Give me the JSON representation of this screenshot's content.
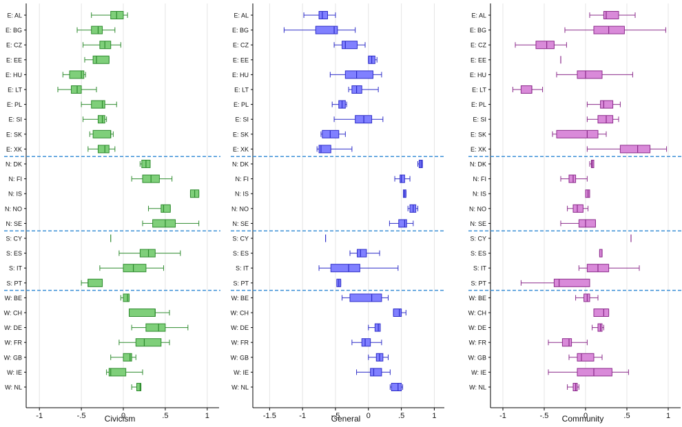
{
  "chart_data": [
    {
      "type": "boxplot",
      "xlabel": "Civicism",
      "xlim": [
        -1.1,
        1.1
      ],
      "xticks": [
        "-1",
        "-.5",
        "0",
        ".5",
        "1"
      ],
      "xtick_values": [
        -1,
        -0.5,
        0,
        0.5,
        1
      ],
      "color": "#5cb85c",
      "fill": "#7fcf7a",
      "stroke": "#2e8b2e",
      "boxes": [
        {
          "label": "E: AL",
          "min": -0.38,
          "q1": -0.15,
          "median": -0.08,
          "q3": 0.0,
          "max": 0.05
        },
        {
          "label": "E: BG",
          "min": -0.55,
          "q1": -0.38,
          "median": -0.3,
          "q3": -0.25,
          "max": -0.1
        },
        {
          "label": "E: CZ",
          "min": -0.48,
          "q1": -0.28,
          "median": -0.22,
          "q3": -0.15,
          "max": -0.03
        },
        {
          "label": "E: EE",
          "min": -0.46,
          "q1": -0.36,
          "median": -0.32,
          "q3": -0.17,
          "max": -0.17
        },
        {
          "label": "E: HU",
          "min": -0.72,
          "q1": -0.64,
          "median": -0.5,
          "q3": -0.47,
          "max": -0.45
        },
        {
          "label": "E: LT",
          "min": -0.78,
          "q1": -0.62,
          "median": -0.55,
          "q3": -0.5,
          "max": -0.32
        },
        {
          "label": "E: PL",
          "min": -0.5,
          "q1": -0.38,
          "median": -0.25,
          "q3": -0.22,
          "max": -0.08
        },
        {
          "label": "E: SI",
          "min": -0.48,
          "q1": -0.3,
          "median": -0.25,
          "q3": -0.22,
          "max": -0.2
        },
        {
          "label": "E: SK",
          "min": -0.4,
          "q1": -0.36,
          "median": -0.15,
          "q3": -0.15,
          "max": -0.12
        },
        {
          "label": "E: XK",
          "min": -0.42,
          "q1": -0.3,
          "median": -0.22,
          "q3": -0.17,
          "max": -0.1
        },
        {
          "label": "N: DK",
          "min": 0.2,
          "q1": 0.22,
          "median": 0.27,
          "q3": 0.32,
          "max": 0.32
        },
        {
          "label": "N: FI",
          "min": 0.1,
          "q1": 0.23,
          "median": 0.33,
          "q3": 0.43,
          "max": 0.58
        },
        {
          "label": "N: IS",
          "min": 0.8,
          "q1": 0.8,
          "median": 0.85,
          "q3": 0.9,
          "max": 0.9
        },
        {
          "label": "N: NO",
          "min": 0.3,
          "q1": 0.45,
          "median": 0.48,
          "q3": 0.56,
          "max": 0.56
        },
        {
          "label": "N: SE",
          "min": 0.23,
          "q1": 0.35,
          "median": 0.5,
          "q3": 0.62,
          "max": 0.9
        },
        {
          "label": "S: CY",
          "min": -0.15,
          "q1": -0.15,
          "median": -0.15,
          "q3": -0.15,
          "max": -0.15
        },
        {
          "label": "S: ES",
          "min": -0.05,
          "q1": 0.2,
          "median": 0.3,
          "q3": 0.38,
          "max": 0.68
        },
        {
          "label": "S: IT",
          "min": -0.28,
          "q1": 0.0,
          "median": 0.12,
          "q3": 0.27,
          "max": 0.48
        },
        {
          "label": "S: PT",
          "min": -0.5,
          "q1": -0.42,
          "median": -0.42,
          "q3": -0.25,
          "max": -0.25
        },
        {
          "label": "W: BE",
          "min": -0.03,
          "q1": 0.0,
          "median": 0.05,
          "q3": 0.07,
          "max": 0.07
        },
        {
          "label": "W: CH",
          "min": 0.07,
          "q1": 0.07,
          "median": 0.38,
          "q3": 0.38,
          "max": 0.55
        },
        {
          "label": "W: DE",
          "min": 0.1,
          "q1": 0.27,
          "median": 0.42,
          "q3": 0.5,
          "max": 0.77
        },
        {
          "label": "W: FR",
          "min": -0.05,
          "q1": 0.15,
          "median": 0.25,
          "q3": 0.45,
          "max": 0.55
        },
        {
          "label": "W: GB",
          "min": -0.15,
          "q1": 0.0,
          "median": 0.08,
          "q3": 0.1,
          "max": 0.15
        },
        {
          "label": "W: IE",
          "min": -0.2,
          "q1": -0.17,
          "median": -0.15,
          "q3": 0.03,
          "max": 0.23
        },
        {
          "label": "W: NL",
          "min": 0.1,
          "q1": 0.16,
          "median": 0.2,
          "q3": 0.21,
          "max": 0.21
        }
      ]
    },
    {
      "type": "boxplot",
      "xlabel": "General",
      "xlim": [
        -1.65,
        1.1
      ],
      "xticks": [
        "-1.5",
        "-1",
        "-.5",
        "0",
        ".5",
        "1"
      ],
      "xtick_values": [
        -1.5,
        -1,
        -0.5,
        0,
        0.5,
        1
      ],
      "color": "#6e6ef0",
      "fill": "#8080ff",
      "stroke": "#2d2dc8",
      "boxes": [
        {
          "label": "E: AL",
          "min": -0.98,
          "q1": -0.75,
          "median": -0.7,
          "q3": -0.62,
          "max": -0.5
        },
        {
          "label": "E: BG",
          "min": -1.28,
          "q1": -0.8,
          "median": -0.52,
          "q3": -0.47,
          "max": -0.2
        },
        {
          "label": "E: CZ",
          "min": -0.52,
          "q1": -0.4,
          "median": -0.35,
          "q3": -0.17,
          "max": -0.05
        },
        {
          "label": "E: EE",
          "min": 0.0,
          "q1": 0.0,
          "median": 0.05,
          "q3": 0.1,
          "max": 0.13
        },
        {
          "label": "E: HU",
          "min": -0.58,
          "q1": -0.35,
          "median": -0.18,
          "q3": 0.07,
          "max": 0.2
        },
        {
          "label": "E: LT",
          "min": -0.3,
          "q1": -0.25,
          "median": -0.18,
          "q3": -0.1,
          "max": 0.15
        },
        {
          "label": "E: PL",
          "min": -0.55,
          "q1": -0.45,
          "median": -0.4,
          "q3": -0.35,
          "max": -0.33
        },
        {
          "label": "E: SI",
          "min": -0.52,
          "q1": -0.2,
          "median": -0.07,
          "q3": 0.05,
          "max": 0.22
        },
        {
          "label": "E: SK",
          "min": -0.72,
          "q1": -0.7,
          "median": -0.58,
          "q3": -0.45,
          "max": -0.35
        },
        {
          "label": "E: XK",
          "min": -0.78,
          "q1": -0.75,
          "median": -0.72,
          "q3": -0.57,
          "max": -0.25
        },
        {
          "label": "N: DK",
          "min": 0.75,
          "q1": 0.77,
          "median": 0.8,
          "q3": 0.82,
          "max": 0.82
        },
        {
          "label": "N: FI",
          "min": 0.4,
          "q1": 0.48,
          "median": 0.5,
          "q3": 0.55,
          "max": 0.63
        },
        {
          "label": "N: IS",
          "min": 0.53,
          "q1": 0.53,
          "median": 0.55,
          "q3": 0.57,
          "max": 0.57
        },
        {
          "label": "N: NO",
          "min": 0.6,
          "q1": 0.63,
          "median": 0.68,
          "q3": 0.72,
          "max": 0.75
        },
        {
          "label": "N: SE",
          "min": 0.32,
          "q1": 0.46,
          "median": 0.55,
          "q3": 0.58,
          "max": 0.68
        },
        {
          "label": "S: CY",
          "min": -0.65,
          "q1": -0.65,
          "median": -0.65,
          "q3": -0.65,
          "max": -0.65
        },
        {
          "label": "S: ES",
          "min": -0.28,
          "q1": -0.17,
          "median": -0.12,
          "q3": -0.03,
          "max": 0.17
        },
        {
          "label": "S: IT",
          "min": -0.75,
          "q1": -0.57,
          "median": -0.3,
          "q3": -0.13,
          "max": 0.45
        },
        {
          "label": "S: PT",
          "min": -0.48,
          "q1": -0.48,
          "median": -0.45,
          "q3": -0.42,
          "max": -0.42
        },
        {
          "label": "W: BE",
          "min": -0.4,
          "q1": -0.28,
          "median": 0.05,
          "q3": 0.2,
          "max": 0.3
        },
        {
          "label": "W: CH",
          "min": 0.38,
          "q1": 0.38,
          "median": 0.47,
          "q3": 0.5,
          "max": 0.57
        },
        {
          "label": "W: DE",
          "min": 0.0,
          "q1": 0.1,
          "median": 0.15,
          "q3": 0.18,
          "max": 0.18
        },
        {
          "label": "W: FR",
          "min": -0.25,
          "q1": -0.1,
          "median": -0.05,
          "q3": 0.03,
          "max": 0.2
        },
        {
          "label": "W: GB",
          "min": 0.0,
          "q1": 0.12,
          "median": 0.17,
          "q3": 0.22,
          "max": 0.3
        },
        {
          "label": "W: IE",
          "min": -0.18,
          "q1": 0.03,
          "median": 0.08,
          "q3": 0.2,
          "max": 0.33
        },
        {
          "label": "W: NL",
          "min": 0.33,
          "q1": 0.35,
          "median": 0.45,
          "q3": 0.5,
          "max": 0.52
        }
      ]
    },
    {
      "type": "boxplot",
      "xlabel": "Community",
      "xlim": [
        -1.1,
        1.1
      ],
      "xticks": [
        "-1",
        "-.5",
        "0",
        ".5",
        "1"
      ],
      "xtick_values": [
        -1,
        -0.5,
        0,
        0.5,
        1
      ],
      "color": "#c266c2",
      "fill": "#d98ad9",
      "stroke": "#8b2b8b",
      "boxes": [
        {
          "label": "E: AL",
          "min": 0.05,
          "q1": 0.22,
          "median": 0.25,
          "q3": 0.4,
          "max": 0.6
        },
        {
          "label": "E: BG",
          "min": -0.25,
          "q1": 0.1,
          "median": 0.28,
          "q3": 0.47,
          "max": 0.97
        },
        {
          "label": "E: CZ",
          "min": -0.85,
          "q1": -0.6,
          "median": -0.47,
          "q3": -0.38,
          "max": -0.23
        },
        {
          "label": "E: EE",
          "min": -0.3,
          "q1": -0.3,
          "median": -0.3,
          "q3": -0.3,
          "max": -0.3
        },
        {
          "label": "E: HU",
          "min": -0.35,
          "q1": -0.1,
          "median": 0.0,
          "q3": 0.2,
          "max": 0.57
        },
        {
          "label": "E: LT",
          "min": -0.88,
          "q1": -0.78,
          "median": -0.65,
          "q3": -0.65,
          "max": -0.52
        },
        {
          "label": "E: PL",
          "min": 0.02,
          "q1": 0.18,
          "median": 0.22,
          "q3": 0.33,
          "max": 0.42
        },
        {
          "label": "E: SI",
          "min": 0.02,
          "q1": 0.15,
          "median": 0.25,
          "q3": 0.33,
          "max": 0.4
        },
        {
          "label": "E: SK",
          "min": -0.4,
          "q1": -0.35,
          "median": 0.02,
          "q3": 0.15,
          "max": 0.25
        },
        {
          "label": "E: XK",
          "min": 0.02,
          "q1": 0.42,
          "median": 0.63,
          "q3": 0.78,
          "max": 0.98
        },
        {
          "label": "N: DK",
          "min": 0.05,
          "q1": 0.07,
          "median": 0.08,
          "q3": 0.1,
          "max": 0.1
        },
        {
          "label": "N: FI",
          "min": -0.3,
          "q1": -0.2,
          "median": -0.15,
          "q3": -0.12,
          "max": 0.02
        },
        {
          "label": "N: IS",
          "min": 0.0,
          "q1": 0.0,
          "median": 0.03,
          "q3": 0.05,
          "max": 0.05
        },
        {
          "label": "N: NO",
          "min": -0.22,
          "q1": -0.15,
          "median": -0.1,
          "q3": -0.03,
          "max": 0.03
        },
        {
          "label": "N: SE",
          "min": -0.3,
          "q1": -0.08,
          "median": 0.0,
          "q3": 0.12,
          "max": 0.12
        },
        {
          "label": "S: CY",
          "min": 0.55,
          "q1": 0.55,
          "median": 0.55,
          "q3": 0.55,
          "max": 0.55
        },
        {
          "label": "S: ES",
          "min": 0.17,
          "q1": 0.17,
          "median": 0.2,
          "q3": 0.2,
          "max": 0.2
        },
        {
          "label": "S: IT",
          "min": -0.08,
          "q1": 0.02,
          "median": 0.15,
          "q3": 0.28,
          "max": 0.65
        },
        {
          "label": "S: PT",
          "min": -0.78,
          "q1": -0.38,
          "median": -0.32,
          "q3": 0.05,
          "max": 0.05
        },
        {
          "label": "W: BE",
          "min": -0.12,
          "q1": -0.02,
          "median": 0.02,
          "q3": 0.05,
          "max": 0.15
        },
        {
          "label": "W: CH",
          "min": 0.1,
          "q1": 0.1,
          "median": 0.22,
          "q3": 0.28,
          "max": 0.28
        },
        {
          "label": "W: DE",
          "min": 0.08,
          "q1": 0.15,
          "median": 0.18,
          "q3": 0.2,
          "max": 0.22
        },
        {
          "label": "W: FR",
          "min": -0.45,
          "q1": -0.28,
          "median": -0.2,
          "q3": -0.17,
          "max": 0.02
        },
        {
          "label": "W: GB",
          "min": -0.2,
          "q1": -0.1,
          "median": -0.05,
          "q3": 0.1,
          "max": 0.2
        },
        {
          "label": "W: IE",
          "min": -0.45,
          "q1": -0.1,
          "median": 0.1,
          "q3": 0.32,
          "max": 0.52
        },
        {
          "label": "W: NL",
          "min": -0.22,
          "q1": -0.15,
          "median": -0.12,
          "q3": -0.1,
          "max": -0.08
        }
      ]
    }
  ],
  "group_boundaries_after": [
    "E: XK",
    "N: SE",
    "S: PT"
  ],
  "colors": {
    "separator": "#3a8fd6",
    "gridline": "#e4e4e4",
    "axis": "#000000",
    "text": "#111111"
  }
}
